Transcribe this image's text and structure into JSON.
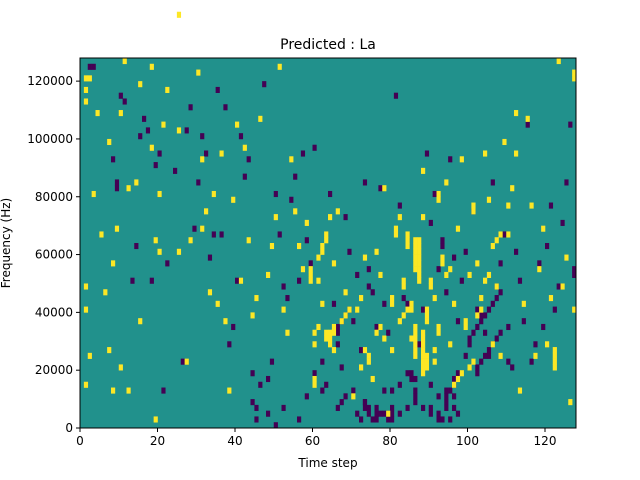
{
  "chart_data": {
    "type": "heatmap",
    "title": "Predicted : La",
    "xlabel": "Time step",
    "ylabel": "Frequency (Hz)",
    "xlim": [
      0,
      128
    ],
    "ylim": [
      0,
      128000
    ],
    "x_ticks": [
      0,
      20,
      40,
      60,
      80,
      100,
      120
    ],
    "x_tick_labels": [
      "0",
      "20",
      "40",
      "60",
      "80",
      "100",
      "120"
    ],
    "y_ticks": [
      0,
      20000,
      40000,
      60000,
      80000,
      100000,
      120000
    ],
    "y_tick_labels": [
      "0",
      "20000",
      "40000",
      "60000",
      "80000",
      "100000",
      "120000"
    ],
    "grid": false,
    "n_time_steps": 128,
    "n_freq_bins": 64,
    "freq_bin_width": 2000,
    "colormap": {
      "low": "#440154",
      "mid": "#21918c",
      "high": "#fde725"
    },
    "background_level": "mid",
    "high_cells": [
      [
        1,
        58,
        75
      ],
      [
        1,
        60,
        80
      ],
      [
        1,
        56
      ],
      [
        1,
        24
      ],
      [
        1,
        20
      ],
      [
        1,
        7
      ],
      [
        2,
        12
      ],
      [
        2,
        60
      ],
      [
        3,
        40
      ],
      [
        4,
        54
      ],
      [
        5,
        33
      ],
      [
        6,
        23
      ],
      [
        7,
        49
      ],
      [
        7,
        13
      ],
      [
        8,
        28
      ],
      [
        8,
        6
      ],
      [
        9,
        34
      ],
      [
        10,
        10
      ],
      [
        10,
        54
      ],
      [
        11,
        63
      ],
      [
        12,
        41
      ],
      [
        12,
        6
      ],
      [
        14,
        42
      ],
      [
        15,
        59
      ],
      [
        15,
        18
      ],
      [
        18,
        48
      ],
      [
        18,
        62
      ],
      [
        19,
        1
      ],
      [
        19,
        32
      ],
      [
        20,
        40
      ],
      [
        20,
        30
      ],
      [
        21,
        52
      ],
      [
        22,
        58
      ],
      [
        25,
        30
      ],
      [
        25,
        51
      ],
      [
        25,
        71
      ],
      [
        27,
        11
      ],
      [
        28,
        32
      ],
      [
        30,
        61
      ],
      [
        31,
        46
      ],
      [
        31,
        34
      ],
      [
        32,
        37
      ],
      [
        33,
        23
      ],
      [
        34,
        40
      ],
      [
        35,
        21
      ],
      [
        36,
        47
      ],
      [
        37,
        18
      ],
      [
        38,
        6
      ],
      [
        39,
        39
      ],
      [
        40,
        52
      ],
      [
        41,
        25
      ],
      [
        42,
        48
      ],
      [
        43,
        32
      ],
      [
        44,
        19
      ],
      [
        45,
        22
      ],
      [
        46,
        53
      ],
      [
        48,
        26
      ],
      [
        49,
        31
      ],
      [
        50,
        36
      ],
      [
        51,
        62
      ],
      [
        52,
        20
      ],
      [
        53,
        16
      ],
      [
        54,
        46
      ],
      [
        55,
        37
      ],
      [
        56,
        31
      ],
      [
        57,
        27
      ],
      [
        58,
        35
      ],
      [
        59,
        26
      ],
      [
        59,
        25
      ],
      [
        59,
        27
      ],
      [
        60,
        7
      ],
      [
        60,
        8
      ],
      [
        61,
        25
      ],
      [
        61,
        29
      ],
      [
        62,
        30
      ],
      [
        62,
        31
      ],
      [
        63,
        32
      ],
      [
        63,
        33
      ],
      [
        64,
        36
      ],
      [
        65,
        13
      ],
      [
        65,
        28
      ],
      [
        66,
        37
      ],
      [
        67,
        18
      ],
      [
        68,
        23
      ],
      [
        70,
        5
      ],
      [
        71,
        20
      ],
      [
        72,
        22
      ],
      [
        73,
        29
      ],
      [
        74,
        12
      ],
      [
        75,
        8
      ],
      [
        76,
        30
      ],
      [
        77,
        26
      ],
      [
        78,
        41
      ],
      [
        79,
        2
      ],
      [
        80,
        21
      ],
      [
        80,
        22
      ],
      [
        81,
        33
      ],
      [
        81,
        34
      ],
      [
        82,
        36
      ],
      [
        83,
        24
      ],
      [
        83,
        25
      ],
      [
        84,
        31
      ],
      [
        84,
        32
      ],
      [
        84,
        33
      ],
      [
        85,
        15
      ],
      [
        85,
        20
      ],
      [
        85,
        21
      ],
      [
        86,
        27
      ],
      [
        86,
        28
      ],
      [
        86,
        29
      ],
      [
        86,
        30
      ],
      [
        86,
        31
      ],
      [
        86,
        32
      ],
      [
        87,
        25
      ],
      [
        87,
        26
      ],
      [
        87,
        27
      ],
      [
        87,
        28
      ],
      [
        87,
        29
      ],
      [
        87,
        30
      ],
      [
        87,
        31
      ],
      [
        87,
        32
      ],
      [
        88,
        44
      ],
      [
        88,
        36
      ],
      [
        89,
        18
      ],
      [
        89,
        19
      ],
      [
        89,
        20
      ],
      [
        90,
        24
      ],
      [
        90,
        25
      ],
      [
        91,
        22
      ],
      [
        91,
        11
      ],
      [
        92,
        39
      ],
      [
        92,
        40
      ],
      [
        93,
        28
      ],
      [
        93,
        29
      ],
      [
        94,
        42
      ],
      [
        95,
        14
      ],
      [
        96,
        21
      ],
      [
        97,
        34
      ],
      [
        98,
        46
      ],
      [
        99,
        17
      ],
      [
        99,
        18
      ],
      [
        100,
        26
      ],
      [
        101,
        37
      ],
      [
        101,
        38
      ],
      [
        102,
        28
      ],
      [
        103,
        22
      ],
      [
        104,
        47
      ],
      [
        105,
        39
      ],
      [
        106,
        14
      ],
      [
        107,
        24
      ],
      [
        108,
        12
      ],
      [
        109,
        49
      ],
      [
        110,
        33
      ],
      [
        111,
        41
      ],
      [
        112,
        54
      ],
      [
        113,
        6
      ],
      [
        114,
        21
      ],
      [
        115,
        53
      ],
      [
        116,
        38
      ],
      [
        117,
        12
      ],
      [
        118,
        27
      ],
      [
        119,
        34
      ],
      [
        120,
        14
      ],
      [
        121,
        22
      ],
      [
        122,
        10
      ],
      [
        122,
        11
      ],
      [
        122,
        12
      ],
      [
        122,
        13
      ],
      [
        123,
        63
      ],
      [
        124,
        24
      ],
      [
        125,
        29
      ],
      [
        126,
        4
      ],
      [
        127,
        20
      ],
      [
        127,
        60
      ],
      [
        127,
        61
      ],
      [
        60,
        14
      ],
      [
        60,
        16
      ],
      [
        61,
        17
      ],
      [
        62,
        21
      ],
      [
        63,
        15
      ],
      [
        63,
        16
      ],
      [
        64,
        14
      ],
      [
        64,
        15
      ],
      [
        64,
        16
      ],
      [
        65,
        16
      ],
      [
        65,
        17
      ],
      [
        68,
        19
      ],
      [
        69,
        20
      ],
      [
        72,
        10
      ],
      [
        73,
        13
      ],
      [
        74,
        11
      ],
      [
        76,
        16
      ],
      [
        77,
        17
      ],
      [
        78,
        15
      ],
      [
        80,
        13
      ],
      [
        82,
        18
      ],
      [
        83,
        19
      ],
      [
        84,
        20
      ],
      [
        86,
        12
      ],
      [
        86,
        13
      ],
      [
        86,
        14
      ],
      [
        86,
        15
      ],
      [
        86,
        16
      ],
      [
        86,
        17
      ],
      [
        88,
        9
      ],
      [
        88,
        10
      ],
      [
        88,
        11
      ],
      [
        88,
        12
      ],
      [
        88,
        13
      ],
      [
        88,
        14
      ],
      [
        88,
        15
      ],
      [
        88,
        16
      ],
      [
        89,
        10
      ],
      [
        89,
        11
      ],
      [
        89,
        12
      ],
      [
        91,
        13
      ],
      [
        92,
        16
      ],
      [
        92,
        17
      ],
      [
        94,
        26
      ],
      [
        95,
        27
      ],
      [
        96,
        7
      ],
      [
        97,
        8
      ],
      [
        98,
        9
      ],
      [
        100,
        10
      ],
      [
        101,
        11
      ],
      [
        102,
        19
      ],
      [
        103,
        20
      ],
      [
        104,
        25
      ],
      [
        105,
        26
      ],
      [
        106,
        31
      ],
      [
        107,
        32
      ],
      [
        108,
        33
      ],
      [
        110,
        38
      ],
      [
        112,
        47
      ]
    ],
    "low_cells": [
      [
        2,
        62
      ],
      [
        3,
        62
      ],
      [
        8,
        46
      ],
      [
        9,
        41
      ],
      [
        9,
        42
      ],
      [
        10,
        57
      ],
      [
        11,
        56
      ],
      [
        13,
        25
      ],
      [
        14,
        31
      ],
      [
        15,
        50
      ],
      [
        16,
        53
      ],
      [
        17,
        51
      ],
      [
        18,
        25
      ],
      [
        19,
        45
      ],
      [
        20,
        47
      ],
      [
        21,
        6
      ],
      [
        22,
        28
      ],
      [
        24,
        44
      ],
      [
        26,
        11
      ],
      [
        27,
        51
      ],
      [
        28,
        55
      ],
      [
        29,
        34
      ],
      [
        30,
        42
      ],
      [
        31,
        50
      ],
      [
        32,
        47
      ],
      [
        33,
        29
      ],
      [
        34,
        33
      ],
      [
        35,
        58
      ],
      [
        36,
        33
      ],
      [
        37,
        55
      ],
      [
        38,
        14
      ],
      [
        39,
        17
      ],
      [
        40,
        25
      ],
      [
        41,
        50
      ],
      [
        42,
        43
      ],
      [
        43,
        46
      ],
      [
        44,
        9
      ],
      [
        45,
        1
      ],
      [
        46,
        7
      ],
      [
        47,
        59
      ],
      [
        48,
        8
      ],
      [
        49,
        11
      ],
      [
        50,
        40
      ],
      [
        51,
        33
      ],
      [
        52,
        24
      ],
      [
        53,
        22
      ],
      [
        54,
        39
      ],
      [
        55,
        43
      ],
      [
        56,
        25
      ],
      [
        57,
        47
      ],
      [
        58,
        32
      ],
      [
        59,
        28
      ],
      [
        60,
        48
      ],
      [
        62,
        6
      ],
      [
        63,
        7
      ],
      [
        64,
        40
      ],
      [
        65,
        21
      ],
      [
        66,
        14
      ],
      [
        67,
        10
      ],
      [
        68,
        36
      ],
      [
        69,
        30
      ],
      [
        70,
        18
      ],
      [
        71,
        26
      ],
      [
        72,
        13
      ],
      [
        73,
        42
      ],
      [
        74,
        27
      ],
      [
        74,
        24
      ],
      [
        75,
        23
      ],
      [
        76,
        17
      ],
      [
        77,
        41
      ],
      [
        78,
        21
      ],
      [
        79,
        16
      ],
      [
        80,
        6
      ],
      [
        81,
        57
      ],
      [
        82,
        38
      ],
      [
        83,
        22
      ],
      [
        84,
        21
      ],
      [
        85,
        8
      ],
      [
        85,
        9
      ],
      [
        86,
        5
      ],
      [
        86,
        6
      ],
      [
        87,
        14
      ],
      [
        88,
        20
      ],
      [
        89,
        47
      ],
      [
        90,
        35
      ],
      [
        91,
        40
      ],
      [
        92,
        27
      ],
      [
        93,
        31
      ],
      [
        93,
        32
      ],
      [
        94,
        23
      ],
      [
        95,
        46
      ],
      [
        96,
        29
      ],
      [
        97,
        18
      ],
      [
        98,
        25
      ],
      [
        99,
        30
      ],
      [
        100,
        14
      ],
      [
        101,
        37
      ],
      [
        102,
        20
      ],
      [
        103,
        19
      ],
      [
        104,
        16
      ],
      [
        105,
        12
      ],
      [
        106,
        42
      ],
      [
        107,
        24
      ],
      [
        108,
        28
      ],
      [
        109,
        33
      ],
      [
        110,
        11
      ],
      [
        111,
        10
      ],
      [
        112,
        30
      ],
      [
        113,
        25
      ],
      [
        114,
        18
      ],
      [
        115,
        52
      ],
      [
        116,
        11
      ],
      [
        117,
        14
      ],
      [
        118,
        28
      ],
      [
        119,
        17
      ],
      [
        120,
        31
      ],
      [
        121,
        38
      ],
      [
        122,
        20
      ],
      [
        123,
        24
      ],
      [
        124,
        35
      ],
      [
        125,
        42
      ],
      [
        126,
        52
      ],
      [
        127,
        26
      ],
      [
        127,
        27
      ],
      [
        44,
        4
      ],
      [
        45,
        3
      ],
      [
        48,
        2
      ],
      [
        50,
        0
      ],
      [
        52,
        3
      ],
      [
        56,
        1
      ],
      [
        58,
        5
      ],
      [
        60,
        9
      ],
      [
        62,
        11
      ],
      [
        66,
        3
      ],
      [
        67,
        4
      ],
      [
        68,
        5
      ],
      [
        70,
        6
      ],
      [
        71,
        2
      ],
      [
        72,
        1
      ],
      [
        73,
        4
      ],
      [
        76,
        3
      ],
      [
        78,
        6
      ],
      [
        80,
        3
      ],
      [
        82,
        7
      ],
      [
        84,
        9
      ],
      [
        86,
        8
      ],
      [
        88,
        3
      ],
      [
        90,
        7
      ],
      [
        92,
        5
      ],
      [
        94,
        4
      ],
      [
        94,
        6
      ],
      [
        95,
        1
      ],
      [
        96,
        3
      ],
      [
        96,
        5
      ],
      [
        97,
        2
      ],
      [
        99,
        12
      ],
      [
        100,
        15
      ],
      [
        101,
        16
      ],
      [
        102,
        17
      ],
      [
        103,
        18
      ],
      [
        104,
        19
      ],
      [
        105,
        20
      ],
      [
        106,
        21
      ],
      [
        107,
        22
      ],
      [
        108,
        23
      ],
      [
        66,
        16
      ],
      [
        66,
        17
      ],
      [
        67,
        18
      ],
      [
        68,
        19
      ],
      [
        69,
        20
      ],
      [
        73,
        3
      ],
      [
        73,
        4
      ],
      [
        74,
        2
      ],
      [
        74,
        3
      ],
      [
        75,
        1
      ],
      [
        76,
        1
      ],
      [
        76,
        2
      ],
      [
        77,
        2
      ],
      [
        78,
        2
      ],
      [
        79,
        1
      ],
      [
        79,
        2
      ],
      [
        80,
        1
      ],
      [
        80,
        2
      ],
      [
        82,
        2
      ],
      [
        84,
        3
      ],
      [
        86,
        4
      ],
      [
        90,
        2
      ],
      [
        90,
        3
      ],
      [
        92,
        1
      ],
      [
        92,
        2
      ],
      [
        93,
        1
      ],
      [
        94,
        3
      ],
      [
        94,
        5
      ],
      [
        95,
        6
      ],
      [
        96,
        7
      ],
      [
        96,
        8
      ],
      [
        97,
        9
      ],
      [
        102,
        9
      ],
      [
        102,
        10
      ],
      [
        103,
        11
      ],
      [
        104,
        12
      ],
      [
        105,
        13
      ],
      [
        106,
        14
      ],
      [
        107,
        15
      ],
      [
        108,
        16
      ],
      [
        110,
        17
      ]
    ]
  }
}
